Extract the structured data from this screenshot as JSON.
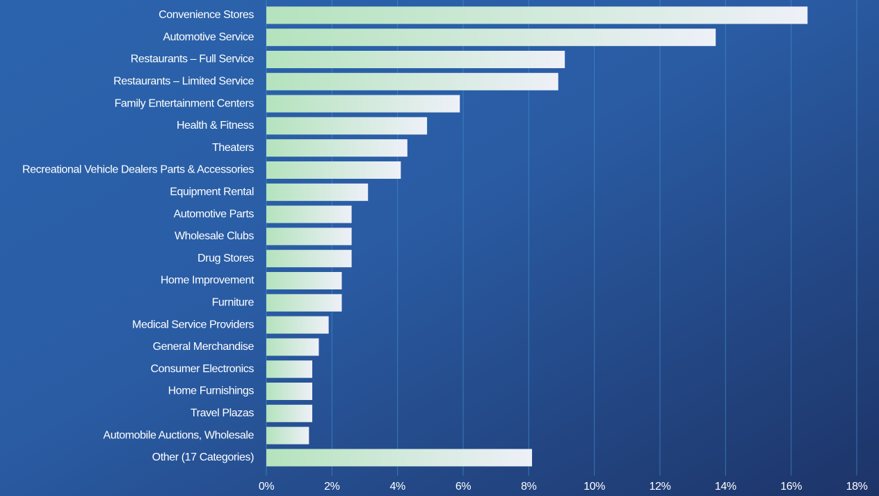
{
  "chart_data": {
    "type": "bar",
    "orientation": "horizontal",
    "categories": [
      "Convenience Stores",
      "Automotive Service",
      "Restaurants – Full Service",
      "Restaurants – Limited Service",
      "Family Entertainment Centers",
      "Health & Fitness",
      "Theaters",
      "Recreational Vehicle Dealers Parts & Accessories",
      "Equipment Rental",
      "Automotive Parts",
      "Wholesale Clubs",
      "Drug Stores",
      "Home Improvement",
      "Furniture",
      "Medical Service Providers",
      "General Merchandise",
      "Consumer Electronics",
      "Home Furnishings",
      "Travel Plazas",
      "Automobile Auctions, Wholesale",
      "Other (17 Categories)"
    ],
    "values": [
      16.5,
      13.7,
      9.1,
      8.9,
      5.9,
      4.9,
      4.3,
      4.1,
      3.1,
      2.6,
      2.6,
      2.6,
      2.3,
      2.3,
      1.9,
      1.6,
      1.4,
      1.4,
      1.4,
      1.3,
      8.1
    ],
    "color": [
      "#b4e3bd",
      "#eef0f8"
    ],
    "xlim": [
      0,
      18
    ],
    "xticks": [
      {
        "value": 0,
        "label": "0%"
      },
      {
        "value": 2,
        "label": "2%"
      },
      {
        "value": 4,
        "label": "4%"
      },
      {
        "value": 6,
        "label": "6%"
      },
      {
        "value": 8,
        "label": "8%"
      },
      {
        "value": 10,
        "label": "10%"
      },
      {
        "value": 12,
        "label": "12%"
      },
      {
        "value": 14,
        "label": "14%"
      },
      {
        "value": 16,
        "label": "16%"
      },
      {
        "value": 18,
        "label": "18%"
      }
    ],
    "grid": true
  }
}
